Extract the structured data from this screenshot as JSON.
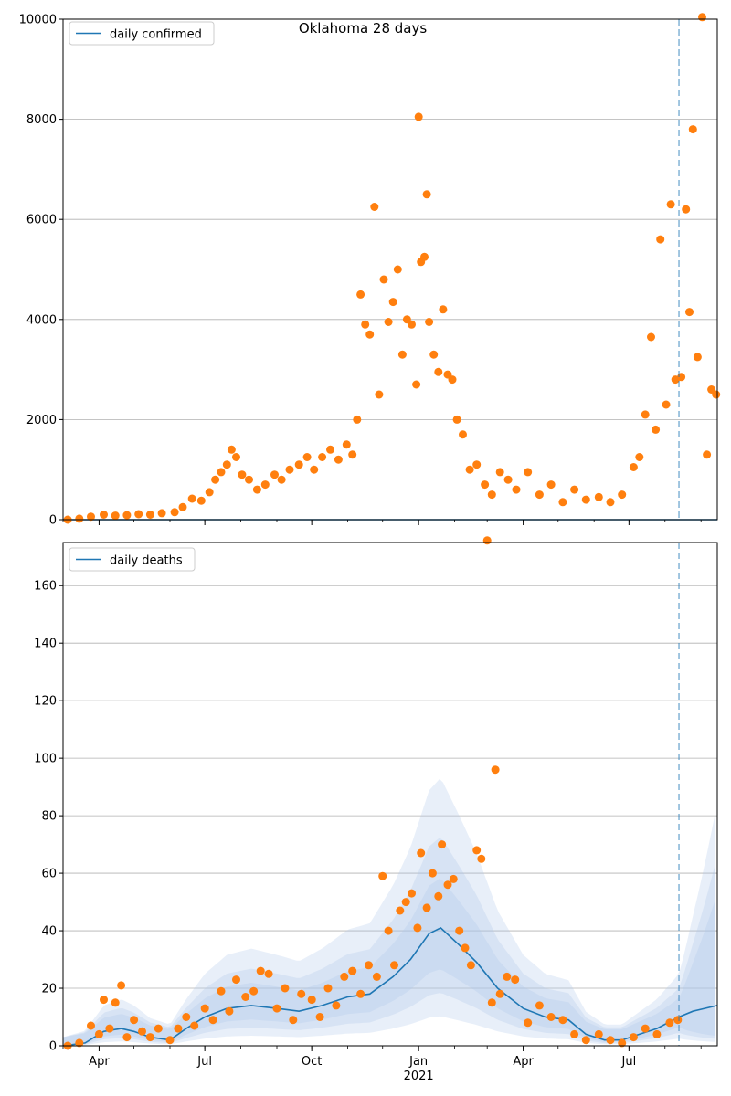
{
  "figure": {
    "title": "Oklahoma 28 days"
  },
  "colors": {
    "fit_line": "#1f77b4",
    "observed": "#ff7f0e",
    "band": "#aec7e8",
    "grid": "#b0b0b0",
    "cutoff": "#1f77b4"
  },
  "chart_data": [
    {
      "type": "line",
      "legend": {
        "label": "daily confirmed",
        "placement": "upper-left"
      },
      "ylim": [
        0,
        10000
      ],
      "yticks": [
        0,
        2000,
        4000,
        6000,
        8000,
        10000
      ],
      "grid": "y",
      "x_date_range": [
        "2020-03-01",
        "2021-09-15"
      ],
      "cutoff_date": "2021-08-13",
      "model_line": [
        [
          "2020-03-01",
          0
        ],
        [
          "2021-09-15",
          0
        ]
      ],
      "observed_points": [
        [
          "2020-03-05",
          0
        ],
        [
          "2020-03-15",
          20
        ],
        [
          "2020-03-25",
          60
        ],
        [
          "2020-04-05",
          100
        ],
        [
          "2020-04-15",
          80
        ],
        [
          "2020-04-25",
          90
        ],
        [
          "2020-05-05",
          110
        ],
        [
          "2020-05-15",
          100
        ],
        [
          "2020-05-25",
          130
        ],
        [
          "2020-06-05",
          150
        ],
        [
          "2020-06-12",
          250
        ],
        [
          "2020-06-20",
          420
        ],
        [
          "2020-06-28",
          380
        ],
        [
          "2020-07-05",
          550
        ],
        [
          "2020-07-10",
          800
        ],
        [
          "2020-07-15",
          950
        ],
        [
          "2020-07-20",
          1100
        ],
        [
          "2020-07-24",
          1400
        ],
        [
          "2020-07-28",
          1250
        ],
        [
          "2020-08-02",
          900
        ],
        [
          "2020-08-08",
          800
        ],
        [
          "2020-08-15",
          600
        ],
        [
          "2020-08-22",
          700
        ],
        [
          "2020-08-30",
          900
        ],
        [
          "2020-09-05",
          800
        ],
        [
          "2020-09-12",
          1000
        ],
        [
          "2020-09-20",
          1100
        ],
        [
          "2020-09-27",
          1250
        ],
        [
          "2020-10-03",
          1000
        ],
        [
          "2020-10-10",
          1250
        ],
        [
          "2020-10-17",
          1400
        ],
        [
          "2020-10-24",
          1200
        ],
        [
          "2020-10-31",
          1500
        ],
        [
          "2020-11-05",
          1300
        ],
        [
          "2020-11-09",
          2000
        ],
        [
          "2020-11-12",
          4500
        ],
        [
          "2020-11-16",
          3900
        ],
        [
          "2020-11-20",
          3700
        ],
        [
          "2020-11-24",
          6250
        ],
        [
          "2020-11-28",
          2500
        ],
        [
          "2020-12-02",
          4800
        ],
        [
          "2020-12-06",
          3950
        ],
        [
          "2020-12-10",
          4350
        ],
        [
          "2020-12-14",
          5000
        ],
        [
          "2020-12-18",
          3300
        ],
        [
          "2020-12-22",
          4000
        ],
        [
          "2020-12-26",
          3900
        ],
        [
          "2020-12-30",
          2700
        ],
        [
          "2021-01-01",
          8050
        ],
        [
          "2021-01-03",
          5150
        ],
        [
          "2021-01-06",
          5250
        ],
        [
          "2021-01-08",
          6500
        ],
        [
          "2021-01-10",
          3950
        ],
        [
          "2021-01-14",
          3300
        ],
        [
          "2021-01-18",
          2950
        ],
        [
          "2021-01-22",
          4200
        ],
        [
          "2021-01-26",
          2900
        ],
        [
          "2021-01-30",
          2800
        ],
        [
          "2021-02-03",
          2000
        ],
        [
          "2021-02-08",
          1700
        ],
        [
          "2021-02-14",
          1000
        ],
        [
          "2021-02-20",
          1100
        ],
        [
          "2021-02-27",
          700
        ],
        [
          "2021-03-05",
          500
        ],
        [
          "2021-03-12",
          950
        ],
        [
          "2021-03-19",
          800
        ],
        [
          "2021-03-26",
          600
        ],
        [
          "2021-04-05",
          950
        ],
        [
          "2021-04-15",
          500
        ],
        [
          "2021-04-25",
          700
        ],
        [
          "2021-05-05",
          350
        ],
        [
          "2021-05-15",
          600
        ],
        [
          "2021-05-25",
          400
        ],
        [
          "2021-06-05",
          450
        ],
        [
          "2021-06-15",
          350
        ],
        [
          "2021-06-25",
          500
        ],
        [
          "2021-07-05",
          1050
        ],
        [
          "2021-07-10",
          1250
        ],
        [
          "2021-07-15",
          2100
        ],
        [
          "2021-07-20",
          3650
        ],
        [
          "2021-07-24",
          1800
        ],
        [
          "2021-07-28",
          5600
        ],
        [
          "2021-08-02",
          2300
        ],
        [
          "2021-08-06",
          6300
        ],
        [
          "2021-08-10",
          2800
        ],
        [
          "2021-08-15",
          2850
        ],
        [
          "2021-08-19",
          6200
        ],
        [
          "2021-08-22",
          4150
        ],
        [
          "2021-08-25",
          7800
        ],
        [
          "2021-08-29",
          3250
        ],
        [
          "2021-09-02",
          10050
        ],
        [
          "2021-09-06",
          1300
        ],
        [
          "2021-09-10",
          2600
        ],
        [
          "2021-09-14",
          2500
        ]
      ]
    },
    {
      "type": "line",
      "legend": {
        "label": "daily deaths",
        "placement": "upper-left"
      },
      "ylim": [
        0,
        175
      ],
      "yticks": [
        0,
        20,
        40,
        60,
        80,
        100,
        120,
        140,
        160
      ],
      "grid": "y",
      "x_date_range": [
        "2020-03-01",
        "2021-09-15"
      ],
      "xticks": [
        {
          "date": "2020-04-01",
          "label": "Apr"
        },
        {
          "date": "2020-07-01",
          "label": "Jul"
        },
        {
          "date": "2020-10-01",
          "label": "Oct"
        },
        {
          "date": "2021-01-01",
          "label": "Jan"
        },
        {
          "date": "2021-04-01",
          "label": "Apr"
        },
        {
          "date": "2021-07-01",
          "label": "Jul"
        }
      ],
      "xtick_year": {
        "date": "2021-01-01",
        "label": "2021"
      },
      "cutoff_date": "2021-08-13",
      "model_line": [
        [
          "2020-03-01",
          0
        ],
        [
          "2020-03-20",
          1
        ],
        [
          "2020-04-05",
          5
        ],
        [
          "2020-04-20",
          6
        ],
        [
          "2020-05-01",
          5
        ],
        [
          "2020-05-15",
          3
        ],
        [
          "2020-06-01",
          2
        ],
        [
          "2020-06-15",
          6
        ],
        [
          "2020-07-01",
          10
        ],
        [
          "2020-07-20",
          13
        ],
        [
          "2020-08-10",
          14
        ],
        [
          "2020-09-01",
          13
        ],
        [
          "2020-09-20",
          12
        ],
        [
          "2020-10-10",
          14
        ],
        [
          "2020-11-01",
          17
        ],
        [
          "2020-11-20",
          18
        ],
        [
          "2020-12-10",
          24
        ],
        [
          "2020-12-25",
          30
        ],
        [
          "2021-01-10",
          39
        ],
        [
          "2021-01-20",
          41
        ],
        [
          "2021-02-05",
          35
        ],
        [
          "2021-02-20",
          29
        ],
        [
          "2021-03-10",
          20
        ],
        [
          "2021-04-01",
          13
        ],
        [
          "2021-04-20",
          10
        ],
        [
          "2021-05-10",
          9
        ],
        [
          "2021-05-25",
          4
        ],
        [
          "2021-06-10",
          2
        ],
        [
          "2021-06-25",
          2
        ],
        [
          "2021-07-10",
          4
        ],
        [
          "2021-07-25",
          6
        ],
        [
          "2021-08-13",
          10
        ],
        [
          "2021-08-25",
          12
        ],
        [
          "2021-09-15",
          14
        ]
      ],
      "observed_points": [
        [
          "2020-03-05",
          0
        ],
        [
          "2020-03-15",
          1
        ],
        [
          "2020-03-25",
          7
        ],
        [
          "2020-04-01",
          4
        ],
        [
          "2020-04-05",
          16
        ],
        [
          "2020-04-10",
          6
        ],
        [
          "2020-04-15",
          15
        ],
        [
          "2020-04-20",
          21
        ],
        [
          "2020-04-25",
          3
        ],
        [
          "2020-05-01",
          9
        ],
        [
          "2020-05-08",
          5
        ],
        [
          "2020-05-15",
          3
        ],
        [
          "2020-05-22",
          6
        ],
        [
          "2020-06-01",
          2
        ],
        [
          "2020-06-08",
          6
        ],
        [
          "2020-06-15",
          10
        ],
        [
          "2020-06-22",
          7
        ],
        [
          "2020-07-01",
          13
        ],
        [
          "2020-07-08",
          9
        ],
        [
          "2020-07-15",
          19
        ],
        [
          "2020-07-22",
          12
        ],
        [
          "2020-07-28",
          23
        ],
        [
          "2020-08-05",
          17
        ],
        [
          "2020-08-12",
          19
        ],
        [
          "2020-08-18",
          26
        ],
        [
          "2020-08-25",
          25
        ],
        [
          "2020-09-01",
          13
        ],
        [
          "2020-09-08",
          20
        ],
        [
          "2020-09-15",
          9
        ],
        [
          "2020-09-22",
          18
        ],
        [
          "2020-10-01",
          16
        ],
        [
          "2020-10-08",
          10
        ],
        [
          "2020-10-15",
          20
        ],
        [
          "2020-10-22",
          14
        ],
        [
          "2020-10-29",
          24
        ],
        [
          "2020-11-05",
          26
        ],
        [
          "2020-11-12",
          18
        ],
        [
          "2020-11-19",
          28
        ],
        [
          "2020-11-26",
          24
        ],
        [
          "2020-12-01",
          59
        ],
        [
          "2020-12-06",
          40
        ],
        [
          "2020-12-11",
          28
        ],
        [
          "2020-12-16",
          47
        ],
        [
          "2020-12-21",
          50
        ],
        [
          "2020-12-26",
          53
        ],
        [
          "2020-12-31",
          41
        ],
        [
          "2021-01-03",
          67
        ],
        [
          "2021-01-08",
          48
        ],
        [
          "2021-01-13",
          60
        ],
        [
          "2021-01-18",
          52
        ],
        [
          "2021-01-21",
          70
        ],
        [
          "2021-01-26",
          56
        ],
        [
          "2021-01-31",
          58
        ],
        [
          "2021-02-05",
          40
        ],
        [
          "2021-02-10",
          34
        ],
        [
          "2021-02-15",
          28
        ],
        [
          "2021-02-20",
          68
        ],
        [
          "2021-02-24",
          65
        ],
        [
          "2021-03-01",
          176
        ],
        [
          "2021-03-05",
          15
        ],
        [
          "2021-03-08",
          96
        ],
        [
          "2021-03-12",
          18
        ],
        [
          "2021-03-18",
          24
        ],
        [
          "2021-03-25",
          23
        ],
        [
          "2021-04-05",
          8
        ],
        [
          "2021-04-15",
          14
        ],
        [
          "2021-04-25",
          10
        ],
        [
          "2021-05-05",
          9
        ],
        [
          "2021-05-15",
          4
        ],
        [
          "2021-05-25",
          2
        ],
        [
          "2021-06-05",
          4
        ],
        [
          "2021-06-15",
          2
        ],
        [
          "2021-06-25",
          1
        ],
        [
          "2021-07-05",
          3
        ],
        [
          "2021-07-15",
          6
        ],
        [
          "2021-07-25",
          4
        ],
        [
          "2021-08-05",
          8
        ],
        [
          "2021-08-12",
          9
        ]
      ]
    }
  ]
}
